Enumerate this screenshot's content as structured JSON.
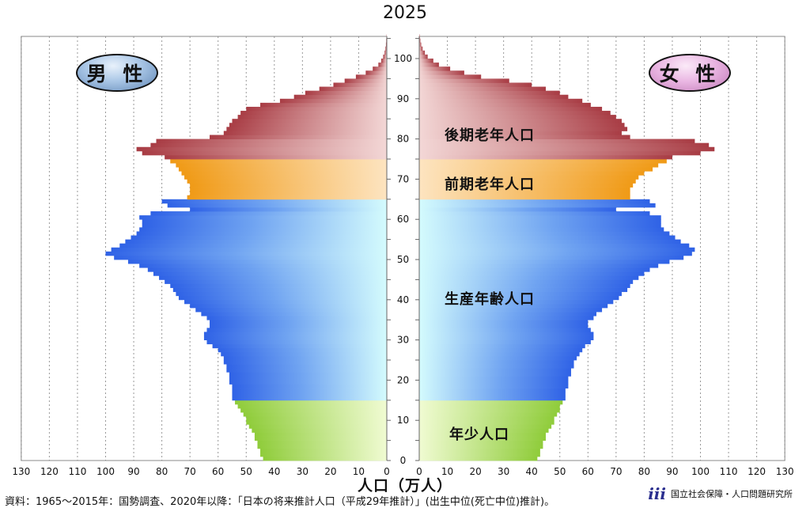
{
  "title": "2025",
  "male_label": "男 性",
  "female_label": "女 性",
  "segments": {
    "late_elderly": "後期老年人口",
    "early_elderly": "前期老年人口",
    "working_age": "生産年齢人口",
    "young": "年少人口"
  },
  "xlabel": "人口（万人）",
  "source": "資料：1965～2015年：国勢調査、2020年以降：「日本の将来推計人口（平成29年推計）」(出生中位(死亡中位)推計)。",
  "org_name": "国立社会保障・人口問題研究所",
  "org_logo": "iii",
  "colors": {
    "young": "#8fcc3a",
    "working": "#3468e6",
    "early_elderly": "#f09a16",
    "late_elderly": "#a83c44",
    "male_badge": "#5f86b5",
    "female_badge": "#c27ab8"
  },
  "chart_data": {
    "type": "bar",
    "orientation": "horizontal-pyramid",
    "title": "2025",
    "xlabel": "人口（万人）",
    "x_ticks": [
      130,
      120,
      110,
      100,
      90,
      80,
      70,
      60,
      50,
      40,
      30,
      20,
      10,
      0
    ],
    "y_ticks": [
      0,
      10,
      20,
      30,
      40,
      50,
      60,
      70,
      80,
      90,
      100
    ],
    "xlim": [
      0,
      130
    ],
    "ylim": [
      0,
      105
    ],
    "grid": true,
    "series": [
      {
        "name": "男性",
        "values": [
          44,
          45,
          45,
          46,
          46,
          47,
          47,
          48,
          49,
          50,
          50,
          51,
          52,
          53,
          54,
          55,
          55,
          55,
          55,
          56,
          56,
          56,
          57,
          57,
          58,
          58,
          59,
          60,
          62,
          64,
          65,
          65,
          64,
          63,
          63,
          64,
          66,
          68,
          70,
          72,
          74,
          75,
          76,
          77,
          79,
          81,
          83,
          85,
          88,
          92,
          97,
          100,
          98,
          95,
          93,
          91,
          89,
          88,
          87,
          87,
          88,
          84,
          70,
          78,
          80,
          71,
          70,
          70,
          70,
          71,
          72,
          73,
          74,
          75,
          77,
          79,
          87,
          89,
          84,
          82,
          63,
          58,
          57,
          56,
          55,
          53,
          52,
          50,
          45,
          38,
          33,
          29,
          24,
          19,
          15,
          11,
          7.5,
          5,
          3,
          2,
          1.3,
          0.8,
          0.5,
          0.3,
          0.2,
          0.1
        ]
      },
      {
        "name": "女性",
        "values": [
          42,
          43,
          43,
          44,
          44,
          45,
          45,
          46,
          47,
          48,
          48,
          49,
          50,
          50,
          51,
          52,
          52,
          52,
          53,
          53,
          53,
          54,
          54,
          55,
          55,
          56,
          57,
          58,
          59,
          61,
          62,
          62,
          61,
          60,
          60,
          62,
          63,
          65,
          67,
          69,
          71,
          72,
          74,
          75,
          76,
          78,
          80,
          82,
          85,
          89,
          94,
          97,
          98,
          96,
          93,
          91,
          89,
          87,
          86,
          86,
          86,
          82,
          70,
          84,
          82,
          75,
          75,
          75,
          76,
          77,
          78,
          80,
          83,
          85,
          88,
          90,
          100,
          105,
          103,
          98,
          75,
          72,
          74,
          73,
          72,
          70,
          68,
          65,
          61,
          58,
          53,
          50,
          45,
          40,
          32,
          22,
          16,
          11,
          7,
          5,
          3,
          2,
          1.2,
          0.7,
          0.4,
          0.2
        ]
      }
    ],
    "age_groups": [
      {
        "name": "年少人口",
        "from": 0,
        "to": 14
      },
      {
        "name": "生産年齢人口",
        "from": 15,
        "to": 64
      },
      {
        "name": "前期老年人口",
        "from": 65,
        "to": 74
      },
      {
        "name": "後期老年人口",
        "from": 75,
        "to": 105
      }
    ]
  }
}
